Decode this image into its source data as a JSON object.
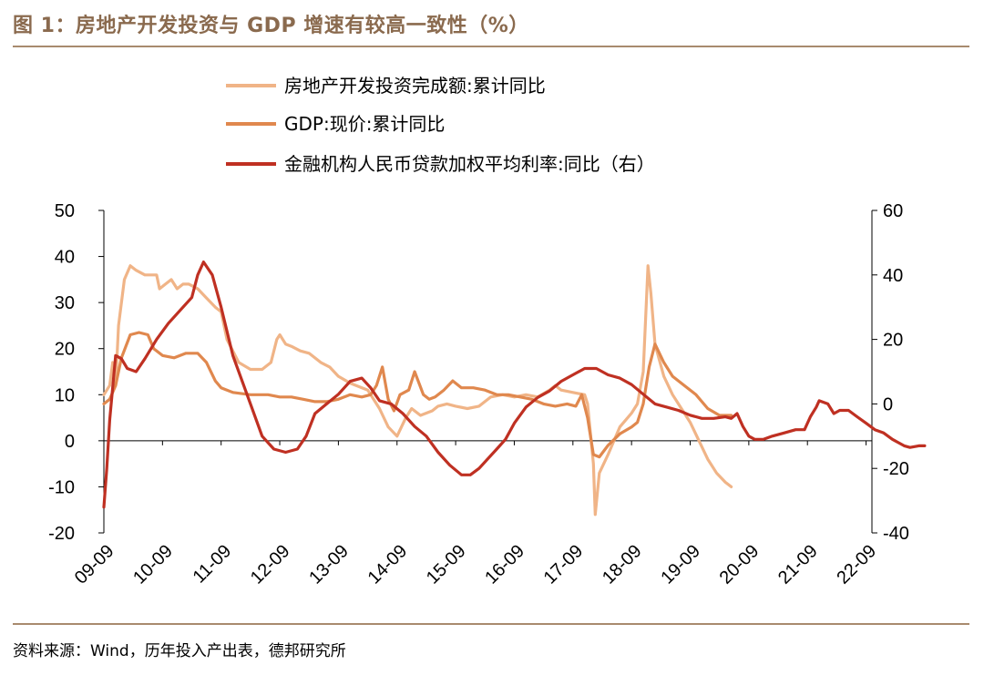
{
  "title": "图 1：房地产开发投资与 GDP 增速有较高一致性（%）",
  "source": "资料来源：Wind，历年投入产出表，德邦研究所",
  "chart_data": {
    "type": "line",
    "x_categories": [
      "09-09",
      "10-09",
      "11-09",
      "12-09",
      "13-09",
      "14-09",
      "15-09",
      "16-09",
      "17-09",
      "18-09",
      "19-09",
      "20-09",
      "21-09",
      "22-09"
    ],
    "left_axis": {
      "min": -20,
      "max": 50,
      "ticks": [
        "-20",
        "-10",
        "0",
        "10",
        "20",
        "30",
        "40",
        "50"
      ]
    },
    "right_axis": {
      "min": -40,
      "max": 60,
      "ticks": [
        "-40",
        "-20",
        "0",
        "20",
        "40",
        "60"
      ]
    },
    "legend": {
      "position": "top"
    },
    "series": [
      {
        "name": "房地产开发投资完成额:累计同比",
        "axis": "left",
        "color": "#f0b487",
        "points": [
          [
            0.0,
            10
          ],
          [
            0.1,
            12
          ],
          [
            0.15,
            17
          ],
          [
            0.2,
            12
          ],
          [
            0.25,
            25
          ],
          [
            0.35,
            35
          ],
          [
            0.45,
            38
          ],
          [
            0.55,
            37
          ],
          [
            0.7,
            36
          ],
          [
            0.9,
            36
          ],
          [
            0.95,
            33
          ],
          [
            1.05,
            34
          ],
          [
            1.15,
            35
          ],
          [
            1.25,
            33
          ],
          [
            1.35,
            34
          ],
          [
            1.45,
            34
          ],
          [
            1.6,
            33
          ],
          [
            1.75,
            31
          ],
          [
            1.9,
            29
          ],
          [
            2.0,
            28
          ],
          [
            2.1,
            22
          ],
          [
            2.3,
            17
          ],
          [
            2.5,
            15.5
          ],
          [
            2.7,
            15.5
          ],
          [
            2.85,
            17
          ],
          [
            2.95,
            22
          ],
          [
            3.0,
            23
          ],
          [
            3.1,
            21
          ],
          [
            3.2,
            20.5
          ],
          [
            3.35,
            19.5
          ],
          [
            3.5,
            19
          ],
          [
            3.7,
            17
          ],
          [
            3.85,
            16
          ],
          [
            4.0,
            14
          ],
          [
            4.2,
            12.5
          ],
          [
            4.5,
            11
          ],
          [
            4.7,
            7
          ],
          [
            4.85,
            3
          ],
          [
            5.0,
            1
          ],
          [
            5.15,
            5
          ],
          [
            5.25,
            7
          ],
          [
            5.4,
            5.5
          ],
          [
            5.5,
            6
          ],
          [
            5.6,
            6.5
          ],
          [
            5.7,
            7.5
          ],
          [
            5.85,
            8
          ],
          [
            6.0,
            7.5
          ],
          [
            6.2,
            7
          ],
          [
            6.4,
            7.5
          ],
          [
            6.6,
            9.5
          ],
          [
            6.8,
            10
          ],
          [
            7.0,
            9.5
          ],
          [
            7.2,
            10
          ],
          [
            7.4,
            9.5
          ],
          [
            7.6,
            11
          ],
          [
            7.7,
            12
          ],
          [
            7.8,
            11
          ],
          [
            8.0,
            10.5
          ],
          [
            8.2,
            10
          ],
          [
            8.25,
            8
          ],
          [
            8.35,
            -5
          ],
          [
            8.38,
            -16
          ],
          [
            8.45,
            -7
          ],
          [
            8.6,
            -3
          ],
          [
            8.8,
            3
          ],
          [
            9.0,
            6
          ],
          [
            9.1,
            8
          ],
          [
            9.2,
            15
          ],
          [
            9.28,
            38
          ],
          [
            9.33,
            32
          ],
          [
            9.4,
            21
          ],
          [
            9.55,
            14
          ],
          [
            9.7,
            10
          ],
          [
            9.85,
            7
          ],
          [
            10.0,
            4
          ],
          [
            10.15,
            0
          ],
          [
            10.3,
            -4
          ],
          [
            10.45,
            -7
          ],
          [
            10.6,
            -9
          ],
          [
            10.7,
            -10
          ]
        ]
      },
      {
        "name": "GDP:现价:累计同比",
        "axis": "left",
        "color": "#e0884e",
        "points": [
          [
            0.0,
            8
          ],
          [
            0.1,
            9
          ],
          [
            0.2,
            12
          ],
          [
            0.3,
            18
          ],
          [
            0.45,
            23
          ],
          [
            0.6,
            23.5
          ],
          [
            0.75,
            23
          ],
          [
            0.85,
            20
          ],
          [
            1.0,
            18.5
          ],
          [
            1.2,
            18
          ],
          [
            1.4,
            19
          ],
          [
            1.6,
            19
          ],
          [
            1.75,
            17
          ],
          [
            1.9,
            13
          ],
          [
            2.0,
            11.5
          ],
          [
            2.2,
            10.5
          ],
          [
            2.5,
            10
          ],
          [
            2.8,
            10
          ],
          [
            3.0,
            9.5
          ],
          [
            3.2,
            9.5
          ],
          [
            3.4,
            9
          ],
          [
            3.6,
            8.5
          ],
          [
            3.8,
            8.5
          ],
          [
            4.0,
            9
          ],
          [
            4.2,
            10
          ],
          [
            4.4,
            9.5
          ],
          [
            4.55,
            10
          ],
          [
            4.65,
            12
          ],
          [
            4.75,
            16
          ],
          [
            4.85,
            9
          ],
          [
            4.95,
            6.5
          ],
          [
            5.05,
            10
          ],
          [
            5.2,
            11
          ],
          [
            5.3,
            15
          ],
          [
            5.45,
            10
          ],
          [
            5.55,
            9
          ],
          [
            5.65,
            9.5
          ],
          [
            5.8,
            11
          ],
          [
            5.95,
            13
          ],
          [
            6.1,
            11.5
          ],
          [
            6.3,
            11.5
          ],
          [
            6.5,
            11
          ],
          [
            6.7,
            10
          ],
          [
            6.9,
            10
          ],
          [
            7.1,
            9.5
          ],
          [
            7.3,
            9
          ],
          [
            7.5,
            8
          ],
          [
            7.7,
            7.5
          ],
          [
            7.9,
            8
          ],
          [
            8.05,
            7.5
          ],
          [
            8.15,
            10
          ],
          [
            8.25,
            5
          ],
          [
            8.35,
            -3
          ],
          [
            8.45,
            -3.5
          ],
          [
            8.6,
            -1
          ],
          [
            8.8,
            1.5
          ],
          [
            9.0,
            3
          ],
          [
            9.1,
            4
          ],
          [
            9.2,
            8
          ],
          [
            9.25,
            12
          ],
          [
            9.3,
            16
          ],
          [
            9.4,
            21
          ],
          [
            9.55,
            17
          ],
          [
            9.7,
            14
          ],
          [
            9.9,
            12
          ],
          [
            10.1,
            10
          ],
          [
            10.3,
            7
          ],
          [
            10.5,
            5.5
          ],
          [
            10.7,
            5.5
          ]
        ]
      },
      {
        "name": "金融机构人民币贷款加权平均利率:同比（右）",
        "axis": "right",
        "color": "#bf3022",
        "points": [
          [
            0.0,
            -32
          ],
          [
            0.05,
            -20
          ],
          [
            0.1,
            -5
          ],
          [
            0.2,
            15
          ],
          [
            0.3,
            14
          ],
          [
            0.4,
            11
          ],
          [
            0.55,
            10
          ],
          [
            0.7,
            14
          ],
          [
            0.9,
            20
          ],
          [
            1.1,
            25
          ],
          [
            1.3,
            29
          ],
          [
            1.5,
            33
          ],
          [
            1.6,
            40
          ],
          [
            1.7,
            44
          ],
          [
            1.85,
            40
          ],
          [
            2.0,
            30
          ],
          [
            2.2,
            15
          ],
          [
            2.5,
            0
          ],
          [
            2.7,
            -10
          ],
          [
            2.9,
            -14
          ],
          [
            3.1,
            -15
          ],
          [
            3.3,
            -14
          ],
          [
            3.45,
            -10
          ],
          [
            3.6,
            -3
          ],
          [
            3.8,
            0
          ],
          [
            4.0,
            3
          ],
          [
            4.2,
            7
          ],
          [
            4.4,
            8
          ],
          [
            4.55,
            5
          ],
          [
            4.7,
            1
          ],
          [
            4.9,
            0
          ],
          [
            5.1,
            -3
          ],
          [
            5.3,
            -7
          ],
          [
            5.5,
            -10
          ],
          [
            5.7,
            -15
          ],
          [
            5.9,
            -19
          ],
          [
            6.1,
            -22
          ],
          [
            6.25,
            -22
          ],
          [
            6.4,
            -20
          ],
          [
            6.55,
            -17
          ],
          [
            6.7,
            -14
          ],
          [
            6.85,
            -11
          ],
          [
            7.0,
            -6
          ],
          [
            7.2,
            -1
          ],
          [
            7.4,
            2
          ],
          [
            7.6,
            4
          ],
          [
            7.8,
            7
          ],
          [
            8.0,
            9
          ],
          [
            8.2,
            11
          ],
          [
            8.4,
            11
          ],
          [
            8.6,
            9
          ],
          [
            8.8,
            8
          ],
          [
            9.0,
            6
          ],
          [
            9.2,
            3
          ],
          [
            9.4,
            0
          ],
          [
            9.6,
            -1
          ],
          [
            9.8,
            -2
          ],
          [
            10.0,
            -3.5
          ],
          [
            10.2,
            -4.5
          ],
          [
            10.4,
            -4.5
          ],
          [
            10.6,
            -4
          ],
          [
            10.7,
            -4.5
          ],
          [
            10.8,
            -3
          ],
          [
            10.9,
            -7
          ],
          [
            11.0,
            -10
          ],
          [
            11.1,
            -11
          ],
          [
            11.25,
            -11
          ],
          [
            11.4,
            -10
          ],
          [
            11.6,
            -9
          ],
          [
            11.8,
            -8
          ],
          [
            11.95,
            -8
          ],
          [
            12.05,
            -4
          ],
          [
            12.15,
            -1
          ],
          [
            12.2,
            1
          ],
          [
            12.35,
            0
          ],
          [
            12.45,
            -3
          ],
          [
            12.55,
            -2
          ],
          [
            12.7,
            -2
          ],
          [
            12.85,
            -4
          ],
          [
            13.0,
            -6
          ],
          [
            13.15,
            -8
          ],
          [
            13.3,
            -9
          ],
          [
            13.45,
            -11
          ],
          [
            13.55,
            -12
          ],
          [
            13.65,
            -13
          ],
          [
            13.75,
            -13.5
          ],
          [
            13.9,
            -13
          ],
          [
            14.0,
            -13
          ]
        ]
      }
    ]
  }
}
